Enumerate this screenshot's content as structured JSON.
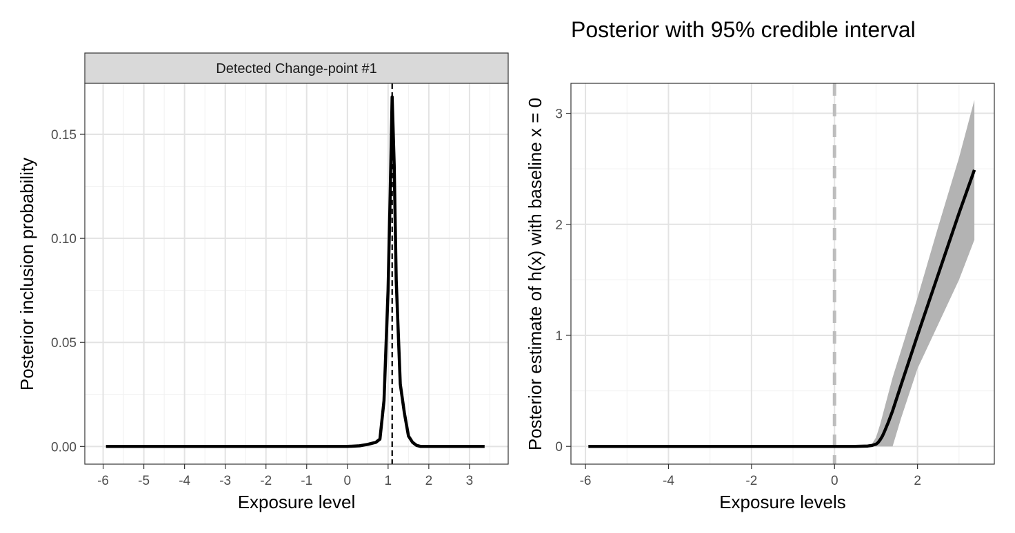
{
  "chart_data": [
    {
      "type": "line",
      "strip_label": "Detected Change-point #1",
      "title": "",
      "xlabel": "Exposure level",
      "ylabel": "Posterior inclusion probability",
      "xlim": [
        -6.45,
        3.95
      ],
      "ylim": [
        -0.0085,
        0.1745
      ],
      "x_ticks": [
        -6,
        -5,
        -4,
        -3,
        -2,
        -1,
        0,
        1,
        2,
        3
      ],
      "x_tick_labels": [
        "-6",
        "-5",
        "-4",
        "-3",
        "-2",
        "-1",
        "0",
        "1",
        "2",
        "3"
      ],
      "y_ticks": [
        0.0,
        0.05,
        0.1,
        0.15
      ],
      "y_tick_labels": [
        "0.00",
        "0.05",
        "0.10",
        "0.15"
      ],
      "grid": true,
      "vline": {
        "x": 1.1,
        "style": "dashed",
        "color": "#000000"
      },
      "series": [
        {
          "x": [
            -5.93,
            0.0,
            0.3,
            0.5,
            0.7,
            0.8,
            0.9,
            1.0,
            1.05,
            1.1,
            1.15,
            1.2,
            1.3,
            1.4,
            1.5,
            1.6,
            1.7,
            1.8,
            2.5,
            3.37
          ],
          "y": [
            0.0,
            0.0,
            0.0003,
            0.001,
            0.002,
            0.0035,
            0.022,
            0.075,
            0.12,
            0.168,
            0.135,
            0.08,
            0.03,
            0.016,
            0.005,
            0.002,
            0.0005,
            0.0,
            0.0,
            0.0
          ]
        }
      ]
    },
    {
      "type": "line",
      "title": "Posterior with 95% credible interval",
      "xlabel": "Exposure levels",
      "ylabel": "Posterior estimate of h(x) with baseline x = 0",
      "xlim": [
        -6.35,
        3.85
      ],
      "ylim": [
        -0.16,
        3.27
      ],
      "x_ticks": [
        -6,
        -4,
        -2,
        0,
        2
      ],
      "x_tick_labels": [
        "-6",
        "-4",
        "-2",
        "0",
        "2"
      ],
      "y_ticks": [
        0,
        1,
        2,
        3
      ],
      "y_tick_labels": [
        "0",
        "1",
        "2",
        "3"
      ],
      "grid": true,
      "vline": {
        "x": 0,
        "style": "dashed",
        "color": "#bdbdbd"
      },
      "series": [
        {
          "x": [
            -5.93,
            0.0,
            0.5,
            0.8,
            0.9,
            1.0,
            1.05,
            1.1,
            1.15,
            1.2,
            1.3,
            1.4,
            1.6,
            2.0,
            2.5,
            3.0,
            3.37
          ],
          "y": [
            0.0,
            0.0,
            0.0,
            0.003,
            0.008,
            0.02,
            0.035,
            0.06,
            0.09,
            0.13,
            0.22,
            0.32,
            0.55,
            1.0,
            1.55,
            2.1,
            2.49
          ],
          "lower": [
            0.0,
            0.0,
            0.0,
            0.0,
            0.0,
            0.0,
            0.0,
            0.0,
            0.0,
            0.0,
            0.0,
            0.0,
            0.25,
            0.7,
            1.1,
            1.5,
            1.86
          ],
          "upper": [
            0.0,
            0.0,
            0.0,
            0.006,
            0.02,
            0.08,
            0.14,
            0.2,
            0.27,
            0.34,
            0.48,
            0.62,
            0.86,
            1.34,
            1.98,
            2.6,
            3.12
          ]
        }
      ]
    }
  ]
}
